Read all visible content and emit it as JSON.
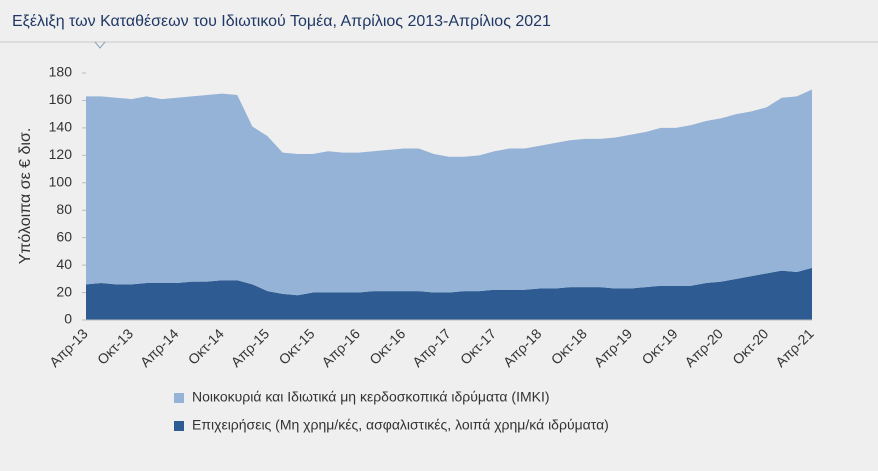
{
  "chart_data": {
    "type": "stacked-area",
    "title": "Εξέλιξη των Καταθέσεων του Ιδιωτικού Τομέα, Απρίλιος 2013-Απρίλιος 2021",
    "y_label": "Υπόλοιπα σε € δισ.",
    "categories": [
      "Απρ-13",
      null,
      null,
      "Οκτ-13",
      null,
      null,
      "Απρ-14",
      null,
      null,
      "Οκτ-14",
      null,
      null,
      "Απρ-15",
      null,
      null,
      "Οκτ-15",
      null,
      null,
      "Απρ-16",
      null,
      null,
      "Οκτ-16",
      null,
      null,
      "Απρ-17",
      null,
      null,
      "Οκτ-17",
      null,
      null,
      "Απρ-18",
      null,
      null,
      "Οκτ-18",
      null,
      null,
      "Απρ-19",
      null,
      null,
      "Οκτ-19",
      null,
      null,
      "Απρ-20",
      null,
      null,
      "Οκτ-20",
      null,
      null,
      "Απρ-21"
    ],
    "series": [
      {
        "name": "Νοικοκυριά και Ιδιωτικά μη κερδοσκοπικά ιδρύματα (ΙΜΚΙ)",
        "color": "#95b3d7",
        "values": [
          137,
          136,
          136,
          135,
          136,
          134,
          135,
          135,
          136,
          136,
          135,
          115,
          113,
          103,
          103,
          101,
          103,
          102,
          102,
          102,
          103,
          104,
          104,
          101,
          99,
          98,
          99,
          101,
          103,
          103,
          104,
          106,
          107,
          108,
          108,
          110,
          112,
          113,
          115,
          115,
          117,
          118,
          119,
          120,
          120,
          121,
          126,
          128,
          130
        ]
      },
      {
        "name": "Επιχειρήσεις (Μη χρημ/κές, ασφαλιστικές, λοιπά χρημ/κά ιδρύματα)",
        "color": "#2e5c92",
        "values": [
          26,
          27,
          26,
          26,
          27,
          27,
          27,
          28,
          28,
          29,
          29,
          26,
          21,
          19,
          18,
          20,
          20,
          20,
          20,
          21,
          21,
          21,
          21,
          20,
          20,
          21,
          21,
          22,
          22,
          22,
          23,
          23,
          24,
          24,
          24,
          23,
          23,
          24,
          25,
          25,
          25,
          27,
          28,
          30,
          32,
          34,
          36,
          35,
          38
        ]
      }
    ],
    "ylim": [
      0,
      180
    ],
    "yticks": [
      0,
      20,
      40,
      60,
      80,
      100,
      120,
      140,
      160,
      180
    ]
  }
}
